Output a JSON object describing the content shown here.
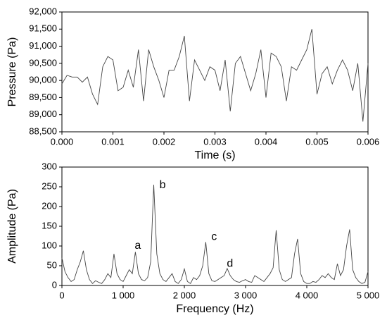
{
  "chart_data": [
    {
      "type": "line",
      "xlabel": "Time (s)",
      "ylabel": "Pressure (Pa)",
      "color": "#444444",
      "x": [
        0,
        0.0001,
        0.0002,
        0.0003,
        0.0004,
        0.0005,
        0.0006,
        0.0007,
        0.0008,
        0.0009,
        0.001,
        0.0011,
        0.0012,
        0.0013,
        0.0014,
        0.0015,
        0.0016,
        0.0017,
        0.0018,
        0.0019,
        0.002,
        0.0021,
        0.0022,
        0.0023,
        0.0024,
        0.0025,
        0.0026,
        0.0027,
        0.0028,
        0.0029,
        0.003,
        0.0031,
        0.0032,
        0.0033,
        0.0034,
        0.0035,
        0.0036,
        0.0037,
        0.0038,
        0.0039,
        0.004,
        0.0041,
        0.0042,
        0.0043,
        0.0044,
        0.0045,
        0.0046,
        0.0047,
        0.0048,
        0.0049,
        0.005,
        0.0051,
        0.0052,
        0.0053,
        0.0054,
        0.0055,
        0.0056,
        0.0057,
        0.0058,
        0.0059,
        0.006
      ],
      "values": [
        89900,
        90150,
        90100,
        90100,
        89950,
        90100,
        89600,
        89300,
        90400,
        90700,
        90600,
        89700,
        89800,
        90300,
        89800,
        90900,
        89400,
        90900,
        90400,
        90000,
        89500,
        90300,
        90300,
        90700,
        91300,
        89400,
        90600,
        90300,
        90000,
        90400,
        90300,
        89700,
        90600,
        89100,
        90500,
        90700,
        90200,
        89700,
        90200,
        90900,
        89500,
        90800,
        90700,
        90400,
        89400,
        90400,
        90300,
        90600,
        90900,
        91500,
        89600,
        90200,
        90400,
        89900,
        90300,
        90600,
        90300,
        89700,
        90500,
        88800,
        90500
      ],
      "xlim": [
        0,
        0.006
      ],
      "xticks": [
        {
          "value": 0,
          "label": "0.000"
        },
        {
          "value": 0.001,
          "label": "0.001"
        },
        {
          "value": 0.002,
          "label": "0.002"
        },
        {
          "value": 0.003,
          "label": "0.003"
        },
        {
          "value": 0.004,
          "label": "0.004"
        },
        {
          "value": 0.005,
          "label": "0.005"
        },
        {
          "value": 0.006,
          "label": "0.006"
        }
      ],
      "ylim": [
        88500,
        92000
      ],
      "yticks": [
        {
          "value": 88500,
          "label": "88,500"
        },
        {
          "value": 89000,
          "label": "89,000"
        },
        {
          "value": 89500,
          "label": "89,500"
        },
        {
          "value": 90000,
          "label": "90,000"
        },
        {
          "value": 90500,
          "label": "90,500"
        },
        {
          "value": 91000,
          "label": "91,000"
        },
        {
          "value": 91500,
          "label": "91,500"
        },
        {
          "value": 92000,
          "label": "92,000"
        }
      ]
    },
    {
      "type": "line",
      "xlabel": "Frequency (Hz)",
      "ylabel": "Amplitude (Pa)",
      "color": "#444444",
      "x": [
        0,
        50,
        100,
        150,
        200,
        250,
        300,
        350,
        400,
        450,
        500,
        550,
        600,
        650,
        700,
        750,
        800,
        850,
        900,
        950,
        1000,
        1050,
        1100,
        1150,
        1200,
        1250,
        1300,
        1350,
        1400,
        1450,
        1500,
        1550,
        1600,
        1650,
        1700,
        1750,
        1800,
        1850,
        1900,
        1950,
        2000,
        2050,
        2100,
        2150,
        2200,
        2250,
        2300,
        2350,
        2400,
        2450,
        2500,
        2550,
        2600,
        2650,
        2700,
        2750,
        2800,
        2850,
        2900,
        2950,
        3000,
        3050,
        3100,
        3150,
        3200,
        3250,
        3300,
        3350,
        3400,
        3450,
        3500,
        3550,
        3600,
        3650,
        3700,
        3750,
        3800,
        3850,
        3900,
        3950,
        4000,
        4050,
        4100,
        4150,
        4200,
        4250,
        4300,
        4350,
        4400,
        4450,
        4500,
        4550,
        4600,
        4650,
        4700,
        4750,
        4800,
        4850,
        4900,
        4950,
        5000
      ],
      "values": [
        70,
        35,
        20,
        10,
        15,
        40,
        60,
        88,
        40,
        15,
        5,
        12,
        8,
        5,
        15,
        30,
        20,
        80,
        30,
        15,
        10,
        25,
        40,
        30,
        85,
        30,
        15,
        12,
        20,
        60,
        255,
        80,
        30,
        15,
        10,
        20,
        30,
        10,
        5,
        15,
        42,
        10,
        5,
        20,
        15,
        25,
        50,
        110,
        30,
        12,
        10,
        15,
        20,
        25,
        43,
        25,
        15,
        10,
        8,
        12,
        15,
        10,
        8,
        25,
        20,
        15,
        10,
        20,
        30,
        45,
        140,
        40,
        15,
        10,
        15,
        20,
        80,
        118,
        30,
        10,
        5,
        5,
        10,
        8,
        15,
        25,
        20,
        30,
        20,
        15,
        55,
        25,
        40,
        100,
        142,
        40,
        20,
        10,
        5,
        8,
        35
      ],
      "xlim": [
        0,
        5000
      ],
      "xticks": [
        0,
        {
          "value": 1000,
          "label": "1 000"
        },
        {
          "value": 2000,
          "label": "2 000"
        },
        {
          "value": 3000,
          "label": "3 000"
        },
        {
          "value": 4000,
          "label": "4 000"
        },
        {
          "value": 5000,
          "label": "5 000"
        }
      ],
      "ylim": [
        0,
        300
      ],
      "yticks": [
        0,
        50,
        100,
        150,
        200,
        250,
        300
      ],
      "annotations": [
        {
          "text": "a",
          "x": 1240,
          "y": 100
        },
        {
          "text": "b",
          "x": 1645,
          "y": 254
        },
        {
          "text": "c",
          "x": 2485,
          "y": 123
        },
        {
          "text": "d",
          "x": 2745,
          "y": 55
        }
      ]
    }
  ]
}
